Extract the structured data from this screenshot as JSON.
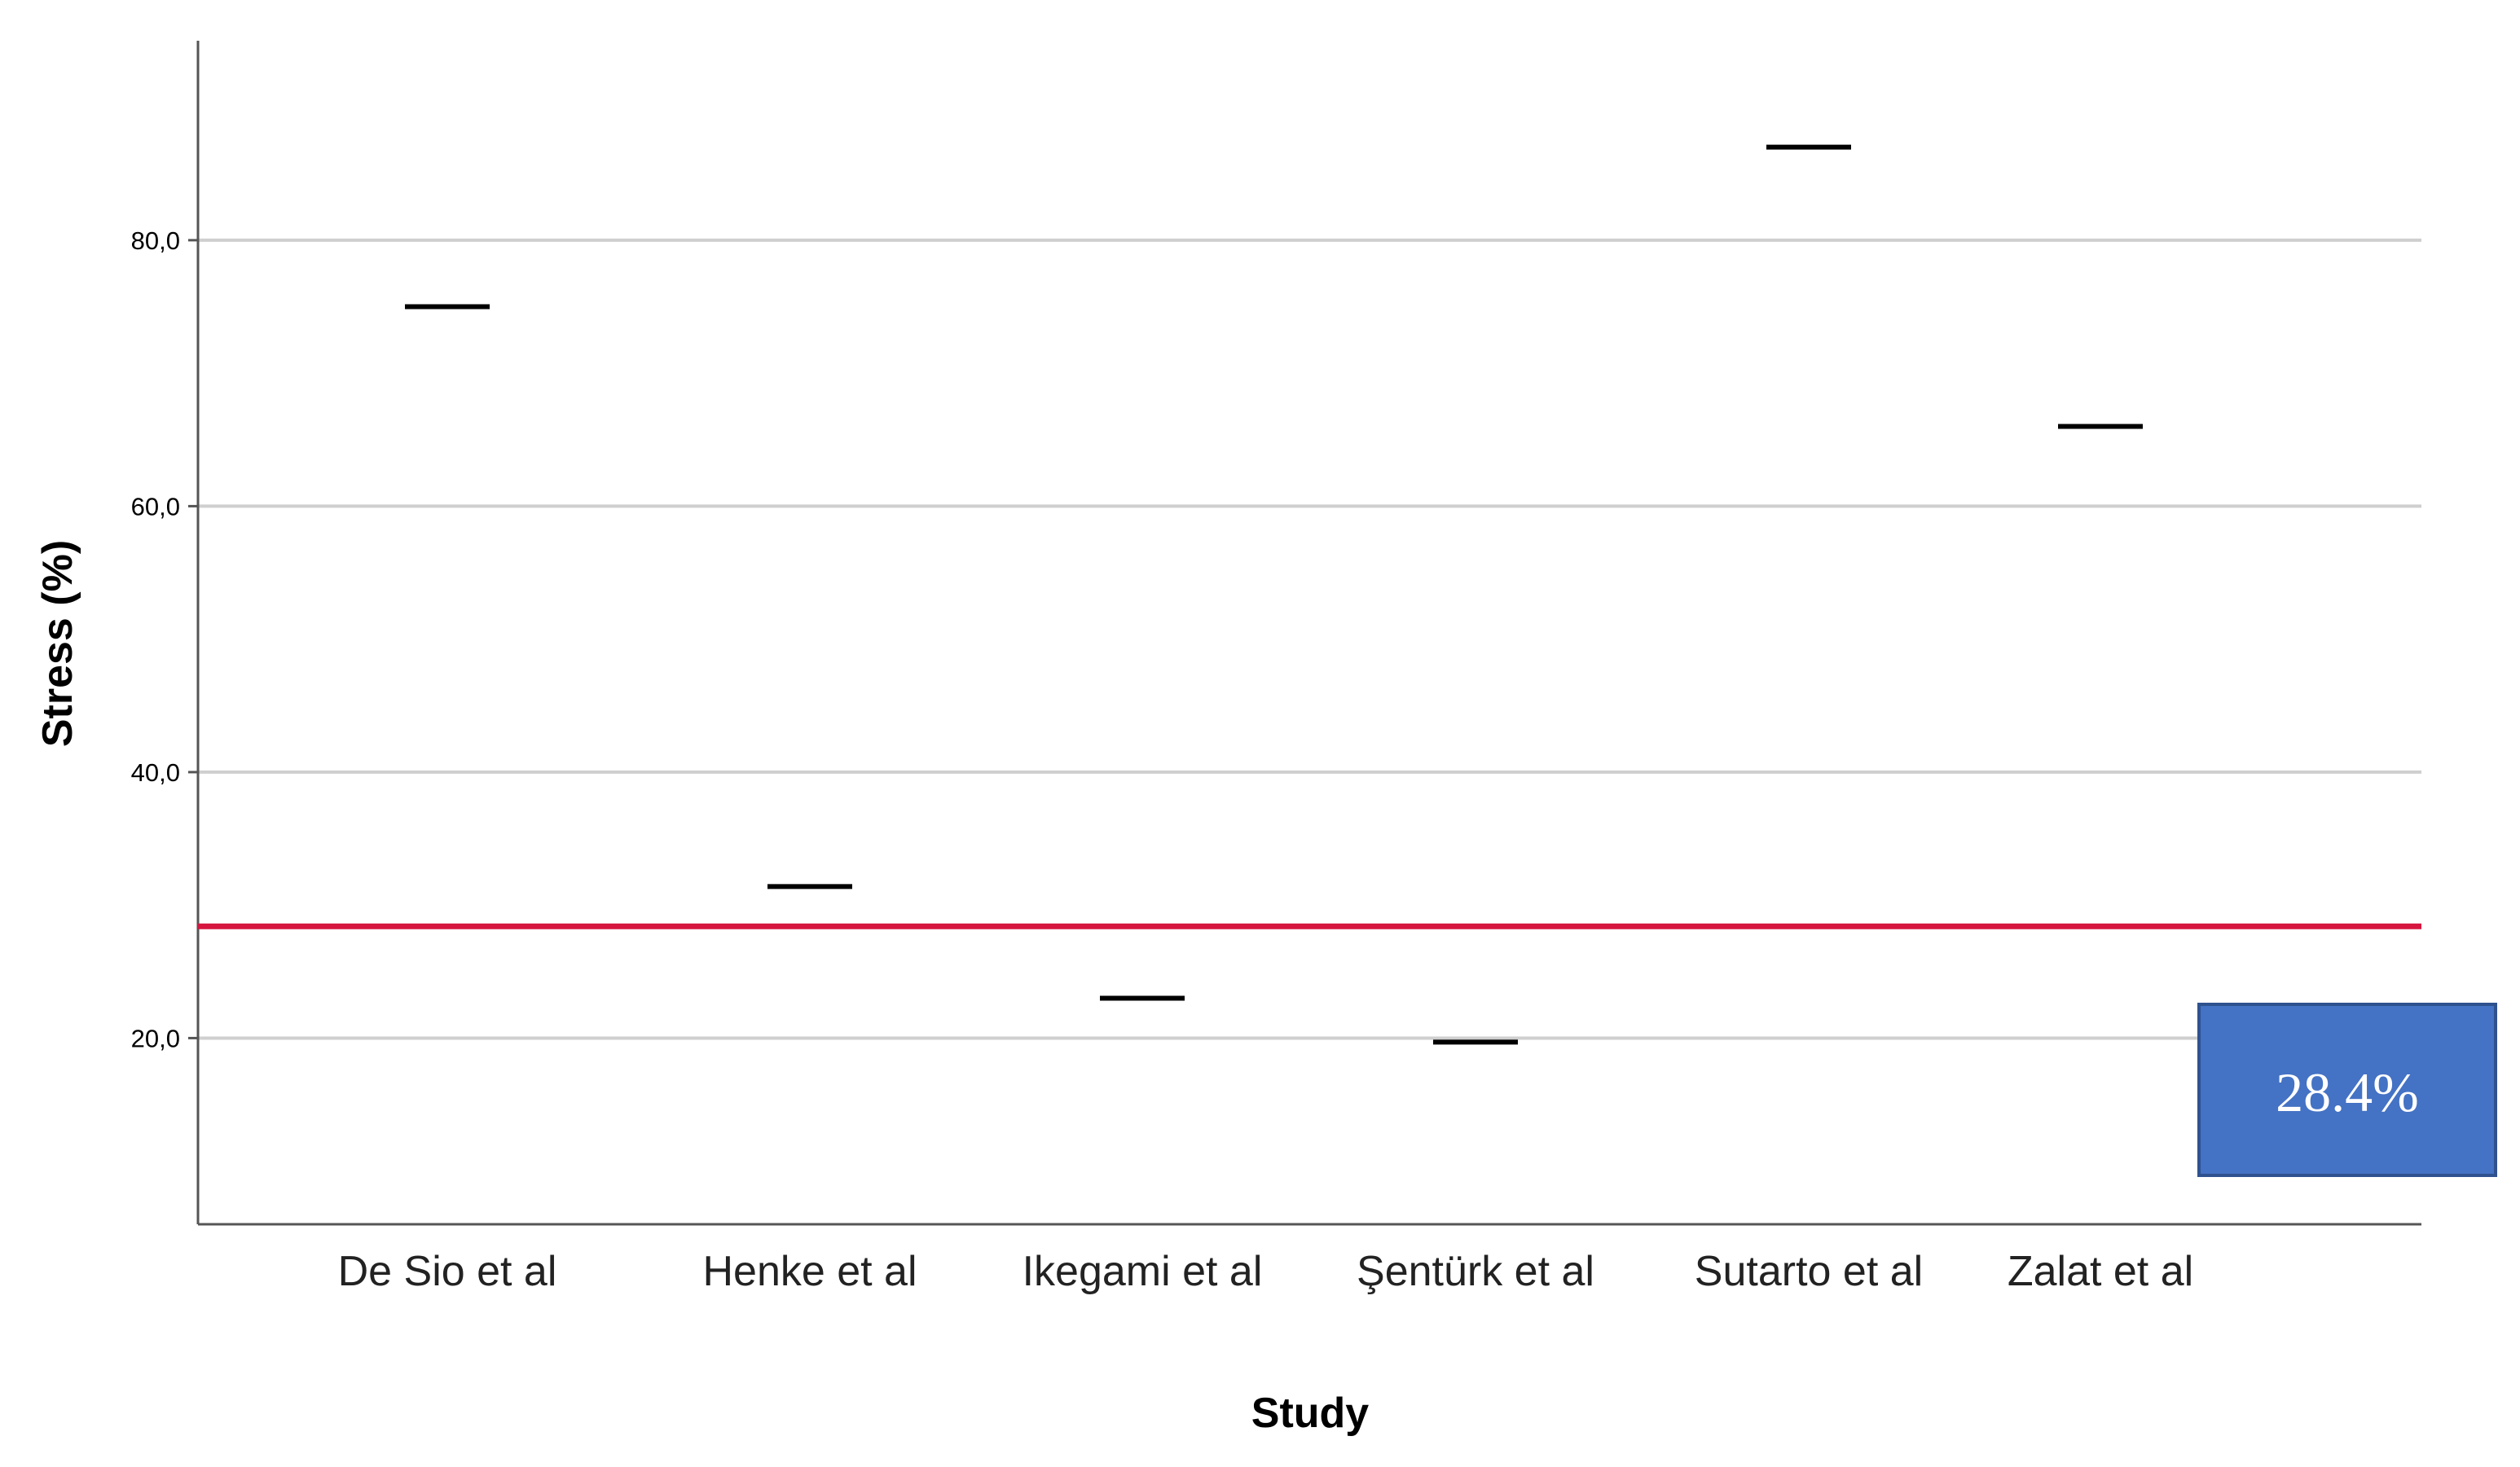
{
  "chart_data": {
    "type": "scatter",
    "marker": "horizontal-dash",
    "xlabel": "Study",
    "ylabel": "Stress (%)",
    "categories": [
      "De Sio et al",
      "Henke et al",
      "Ikegami et al",
      "Şentürk et al",
      "Sutarto et al",
      "Zalat et al"
    ],
    "values": [
      75.0,
      31.4,
      23.0,
      19.7,
      87.0,
      66.0
    ],
    "ylim": [
      6.0,
      95.0
    ],
    "yticks": [
      20.0,
      40.0,
      60.0,
      80.0
    ],
    "ytick_labels": [
      "20,0",
      "40,0",
      "60,0",
      "80,0"
    ],
    "grid": "horizontal",
    "reference_line": {
      "value": 28.4,
      "label": "28.4%",
      "color": "#d6163f"
    },
    "colors": {
      "marker": "#000000",
      "grid": "#cfcfcf",
      "axis": "#555555",
      "annotation_box": "#4472c4",
      "annotation_border": "#2f528f",
      "annotation_text": "#ffffff"
    }
  }
}
